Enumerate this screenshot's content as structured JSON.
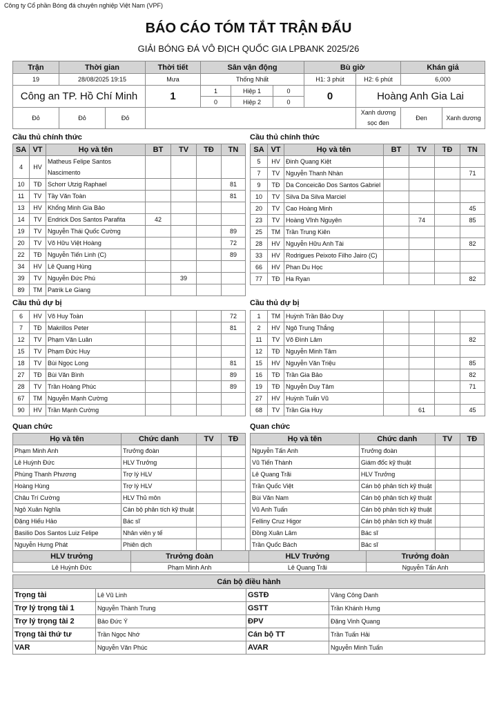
{
  "company": "Công ty Cổ phần Bóng đá chuyên nghiệp Việt Nam (VPF)",
  "title": "BÁO CÁO TÓM TẮT TRẬN ĐẤU",
  "subtitle": "GIẢI BÓNG ĐÁ VÔ ĐỊCH QUỐC GIA LPBANK 2025/26",
  "match": {
    "headers": [
      "Trận",
      "Thời gian",
      "Thời tiết",
      "Sân vận động",
      "Bù giờ",
      "Khán giả"
    ],
    "number": "19",
    "datetime": "28/08/2025 19:15",
    "weather": "Mưa",
    "stadium": "Thống Nhất",
    "added_h1": "H1: 3 phút",
    "added_h2": "H2: 6 phút",
    "attendance": "6,000",
    "home_team": "Công an TP. Hồ Chí Minh",
    "away_team": "Hoàng Anh Gia Lai",
    "home_score": "1",
    "away_score": "0",
    "half1": {
      "label": "Hiệp 1",
      "home": "1",
      "away": "0"
    },
    "half2": {
      "label": "Hiệp 2",
      "home": "0",
      "away": "0"
    },
    "home_colors": [
      "Đỏ",
      "Đỏ",
      "Đỏ"
    ],
    "away_colors": [
      "Xanh dương sọc đen",
      "Đen",
      "Xanh dương"
    ]
  },
  "labels": {
    "starters": "Cầu thủ chính thức",
    "subs": "Cầu thủ dự bị",
    "officials": "Quan chức",
    "player_cols": [
      "SA",
      "VT",
      "Họ và tên",
      "BT",
      "TV",
      "TĐ",
      "TN"
    ],
    "official_cols": [
      "Họ và tên",
      "Chức danh",
      "TV",
      "TĐ"
    ]
  },
  "home": {
    "starters": [
      [
        "4",
        "HV",
        "Matheus Felipe Santos Nascimento",
        "",
        "",
        "",
        ""
      ],
      [
        "10",
        "TĐ",
        " Schorr Utzig Raphael",
        "",
        "",
        "",
        "81"
      ],
      [
        "11",
        "TV",
        "Tầy Văn Toàn",
        "",
        "",
        "",
        "81"
      ],
      [
        "13",
        "HV",
        "Khổng Minh Gia Bảo",
        "",
        "",
        "",
        ""
      ],
      [
        "14",
        "TV",
        "Endrick Dos Santos Parafita",
        "42",
        "",
        "",
        ""
      ],
      [
        "19",
        "TV",
        "Nguyễn Thái Quốc Cường",
        "",
        "",
        "",
        "89"
      ],
      [
        "20",
        "TV",
        "Võ Hữu Việt Hoàng",
        "",
        "",
        "",
        "72"
      ],
      [
        "22",
        "TĐ",
        "Nguyễn Tiến Linh (C)",
        "",
        "",
        "",
        "89"
      ],
      [
        "34",
        "HV",
        "Lê Quang Hùng",
        "",
        "",
        "",
        ""
      ],
      [
        "39",
        "TV",
        "Nguyễn Đức Phú",
        "",
        "39",
        "",
        ""
      ],
      [
        "89",
        "TM",
        "Patrik Le Giang",
        "",
        "",
        "",
        ""
      ]
    ],
    "subs": [
      [
        "6",
        "HV",
        "Võ Huy Toàn",
        "",
        "",
        "",
        "72"
      ],
      [
        "7",
        "TĐ",
        "Makrillos Peter",
        "",
        "",
        "",
        "81"
      ],
      [
        "12",
        "TV",
        "Phạm Văn Luân",
        "",
        "",
        "",
        ""
      ],
      [
        "15",
        "TV",
        "Phạm Đức Huy",
        "",
        "",
        "",
        ""
      ],
      [
        "18",
        "TV",
        "Bùi Ngọc Long",
        "",
        "",
        "",
        "81"
      ],
      [
        "27",
        "TĐ",
        "Bùi Văn Bình",
        "",
        "",
        "",
        "89"
      ],
      [
        "28",
        "TV",
        "Trần Hoàng Phúc",
        "",
        "",
        "",
        "89"
      ],
      [
        "67",
        "TM",
        "Nguyễn Mạnh Cường",
        "",
        "",
        "",
        ""
      ],
      [
        "90",
        "HV",
        "Trần Mạnh Cường",
        "",
        "",
        "",
        ""
      ]
    ],
    "officials": [
      [
        "Phạm Minh Anh",
        "Trưởng đoàn",
        "",
        ""
      ],
      [
        "Lê Huỳnh Đức",
        "HLV Trưởng",
        "",
        ""
      ],
      [
        "Phùng Thanh Phương",
        "Trợ lý HLV",
        "",
        ""
      ],
      [
        "Hoàng Hùng",
        "Trợ lý HLV",
        "",
        ""
      ],
      [
        "Châu Trí Cường",
        "HLV Thủ môn",
        "",
        ""
      ],
      [
        "Ngô Xuân Nghĩa",
        "Cán bộ phân tích kỹ thuật",
        "",
        ""
      ],
      [
        "Đặng Hiếu Hảo",
        "Bác sĩ",
        "",
        ""
      ],
      [
        "Basilio Dos Santos Luiz Felipe",
        "Nhân viên y tế",
        "",
        ""
      ],
      [
        "Nguyễn Hưng Phát",
        "Phiên dịch",
        "",
        ""
      ]
    ]
  },
  "away": {
    "starters": [
      [
        "5",
        "HV",
        "Đinh Quang Kiệt",
        "",
        "",
        "",
        ""
      ],
      [
        "7",
        "TV",
        "Nguyễn Thanh Nhàn",
        "",
        "",
        "",
        "71"
      ],
      [
        "9",
        "TĐ",
        "Da Conceicão Dos Santos Gabriel",
        "",
        "",
        "",
        ""
      ],
      [
        "10",
        "TV",
        "Silva Da Silva Marciel",
        "",
        "",
        "",
        ""
      ],
      [
        "20",
        "TV",
        "Cao Hoàng Minh",
        "",
        "",
        "",
        "45"
      ],
      [
        "23",
        "TV",
        "Hoàng Vĩnh Nguyên",
        "",
        "74",
        "",
        "85"
      ],
      [
        "25",
        "TM",
        "Trần Trung Kiên",
        "",
        "",
        "",
        ""
      ],
      [
        "28",
        "HV",
        "Nguyễn Hữu Anh Tài",
        "",
        "",
        "",
        "82"
      ],
      [
        "33",
        "HV",
        "Rodrigues Peixoto Filho Jairo (C)",
        "",
        "",
        "",
        ""
      ],
      [
        "66",
        "HV",
        "Phan Du Học",
        "",
        "",
        "",
        ""
      ],
      [
        "77",
        "TĐ",
        " Ha Ryan",
        "",
        "",
        "",
        "82"
      ]
    ],
    "subs": [
      [
        "1",
        "TM",
        "Huỳnh Trần Bảo Duy",
        "",
        "",
        "",
        ""
      ],
      [
        "2",
        "HV",
        "Ngô Trung Thắng",
        "",
        "",
        "",
        ""
      ],
      [
        "11",
        "TV",
        "Võ Đình Lâm",
        "",
        "",
        "",
        "82"
      ],
      [
        "12",
        "TĐ",
        "Nguyễn Minh Tâm",
        "",
        "",
        "",
        ""
      ],
      [
        "15",
        "HV",
        "Nguyễn Văn Triệu",
        "",
        "",
        "",
        "85"
      ],
      [
        "16",
        "TĐ",
        "Trần Gia Bảo",
        "",
        "",
        "",
        "82"
      ],
      [
        "19",
        "TĐ",
        "Nguyễn Duy Tâm",
        "",
        "",
        "",
        "71"
      ],
      [
        "27",
        "HV",
        "Huỳnh Tuấn Vũ",
        "",
        "",
        "",
        ""
      ],
      [
        "68",
        "TV",
        "Trần Gia Huy",
        "",
        "61",
        "",
        "45"
      ]
    ],
    "officials": [
      [
        "Nguyễn Tấn Anh",
        "Trưởng đoàn",
        "",
        ""
      ],
      [
        "Vũ Tiến Thành",
        "Giám đốc kỹ thuật",
        "",
        ""
      ],
      [
        "Lê Quang Trãi",
        "HLV Trưởng",
        "",
        ""
      ],
      [
        "Trần Quốc Việt",
        "Cán bộ phân tích kỹ thuật",
        "",
        ""
      ],
      [
        "Bùi Văn Nam",
        "Cán bộ phân tích kỹ thuật",
        "",
        ""
      ],
      [
        "Vũ Anh Tuấn",
        "Cán bộ phân tích kỹ thuật",
        "",
        ""
      ],
      [
        " Felliny Cruz Higor",
        "Cán bộ phân tích kỹ thuật",
        "",
        ""
      ],
      [
        "Đồng Xuân Lâm",
        "Bác sĩ",
        "",
        ""
      ],
      [
        "Trần Quốc Bách",
        "Bác sĩ",
        "",
        ""
      ]
    ]
  },
  "coaches": {
    "headers": [
      "HLV trưởng",
      "Trưởng đoàn",
      "HLV Trưởng",
      "Trưởng đoàn"
    ],
    "values": [
      "Lê Huỳnh Đức",
      "Phạm Minh Anh",
      "Lê Quang Trãi",
      "Nguyễn Tấn Anh"
    ]
  },
  "referees": {
    "title": "Cán bộ điều hành",
    "rows": [
      [
        "Trọng tài",
        "Lê Vũ Linh",
        "GSTĐ",
        "Vâng Công Danh"
      ],
      [
        "Trợ lý trọng tài 1",
        "Nguyễn Thành Trung",
        "GSTT",
        "Trần Khánh Hưng"
      ],
      [
        "Trợ lý trọng tài 2",
        "Bảo Đức Ý",
        "ĐPV",
        "Đặng Vinh Quang"
      ],
      [
        "Trọng tài thứ tư",
        "Trần Ngọc Nhớ",
        "Cán bộ TT",
        "Trần Tuấn Hải"
      ],
      [
        "VAR",
        "Nguyễn Văn Phúc",
        "AVAR",
        "Nguyễn Minh Tuấn"
      ]
    ]
  }
}
